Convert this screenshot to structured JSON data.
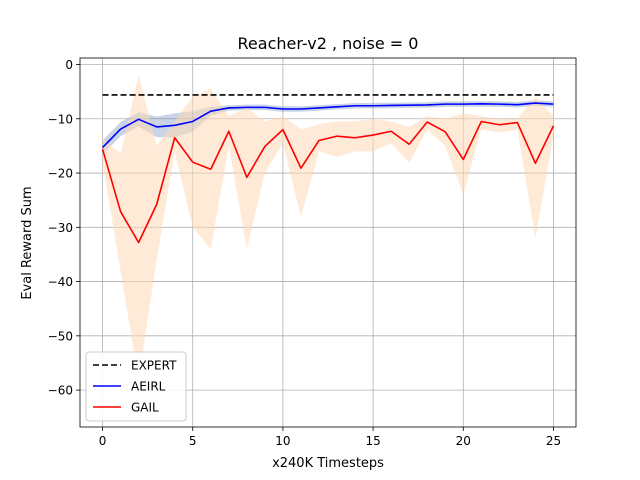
{
  "chart_data": {
    "type": "line",
    "title": "Reacher-v2 , noise = 0",
    "xlabel": "x240K Timesteps",
    "ylabel": "Eval Reward Sum",
    "xlim": [
      -1.25,
      26.25
    ],
    "ylim": [
      -66.8,
      1.2
    ],
    "xticks": [
      0,
      5,
      10,
      15,
      20,
      25
    ],
    "yticks": [
      0,
      -10,
      -20,
      -30,
      -40,
      -50,
      -60
    ],
    "xtick_labels": [
      "0",
      "5",
      "10",
      "15",
      "20",
      "25"
    ],
    "ytick_labels": [
      "0",
      "−10",
      "−20",
      "−30",
      "−40",
      "−50",
      "−60"
    ],
    "grid": true,
    "legend_position": "lower-left",
    "x": [
      0,
      1,
      2,
      3,
      4,
      5,
      6,
      7,
      8,
      9,
      10,
      11,
      12,
      13,
      14,
      15,
      16,
      17,
      18,
      19,
      20,
      21,
      22,
      23,
      24,
      25
    ],
    "series": [
      {
        "name": "EXPERT",
        "color": "#000000",
        "dash": true,
        "values": [
          -5.6,
          -5.6,
          -5.6,
          -5.6,
          -5.6,
          -5.6,
          -5.6,
          -5.6,
          -5.6,
          -5.6,
          -5.6,
          -5.6,
          -5.6,
          -5.6,
          -5.6,
          -5.6,
          -5.6,
          -5.6,
          -5.6,
          -5.6,
          -5.6,
          -5.6,
          -5.6,
          -5.6,
          -5.6,
          -5.6
        ]
      },
      {
        "name": "AEIRL",
        "color": "#0000ff",
        "band_color": "#4c72b0",
        "values": [
          -15.3,
          -11.9,
          -10.1,
          -11.5,
          -11.2,
          -10.5,
          -8.6,
          -8.0,
          -7.9,
          -7.9,
          -8.2,
          -8.2,
          -8.0,
          -7.8,
          -7.6,
          -7.6,
          -7.55,
          -7.5,
          -7.45,
          -7.3,
          -7.3,
          -7.25,
          -7.3,
          -7.4,
          -7.1,
          -7.3
        ],
        "band_upper": [
          -14.0,
          -10.6,
          -8.8,
          -9.6,
          -9.0,
          -8.6,
          -7.8,
          -7.5,
          -7.4,
          -7.4,
          -7.7,
          -7.7,
          -7.5,
          -7.3,
          -7.1,
          -7.1,
          -7.05,
          -7.0,
          -6.95,
          -6.8,
          -6.8,
          -6.75,
          -6.8,
          -6.9,
          -6.6,
          -6.8
        ],
        "band_lower": [
          -16.6,
          -13.2,
          -11.4,
          -13.4,
          -13.4,
          -12.4,
          -9.4,
          -8.5,
          -8.4,
          -8.4,
          -8.7,
          -8.7,
          -8.5,
          -8.3,
          -8.1,
          -8.1,
          -8.05,
          -8.0,
          -7.95,
          -7.8,
          -7.8,
          -7.75,
          -7.8,
          -7.9,
          -7.6,
          -7.8
        ]
      },
      {
        "name": "GAIL",
        "color": "#ff0000",
        "band_color": "#fdd9b5",
        "values": [
          -15.6,
          -27.1,
          -32.8,
          -25.8,
          -13.5,
          -18.0,
          -19.3,
          -12.3,
          -20.8,
          -15.1,
          -12.0,
          -19.1,
          -14.0,
          -13.2,
          -13.5,
          -13.0,
          -12.3,
          -14.7,
          -10.6,
          -12.4,
          -17.5,
          -10.5,
          -11.1,
          -10.7,
          -18.2,
          -11.3
        ],
        "band_upper": [
          -13.5,
          -16.5,
          -2.0,
          -15.0,
          -10.5,
          -6.0,
          -4.5,
          -9.5,
          -8.0,
          -10.5,
          -9.5,
          -12.0,
          -11.0,
          -10.5,
          -10.5,
          -10.0,
          -10.5,
          -11.5,
          -9.5,
          -10.0,
          -9.0,
          -9.5,
          -10.0,
          -10.0,
          -6.0,
          -9.5
        ],
        "band_lower": [
          -18.0,
          -38.0,
          -58.0,
          -36.0,
          -16.0,
          -30.0,
          -34.0,
          -15.0,
          -34.0,
          -20.0,
          -14.5,
          -28.0,
          -16.0,
          -17.0,
          -16.0,
          -16.0,
          -14.5,
          -18.0,
          -12.0,
          -15.0,
          -24.0,
          -12.0,
          -12.5,
          -12.0,
          -32.0,
          -13.0
        ]
      }
    ]
  }
}
